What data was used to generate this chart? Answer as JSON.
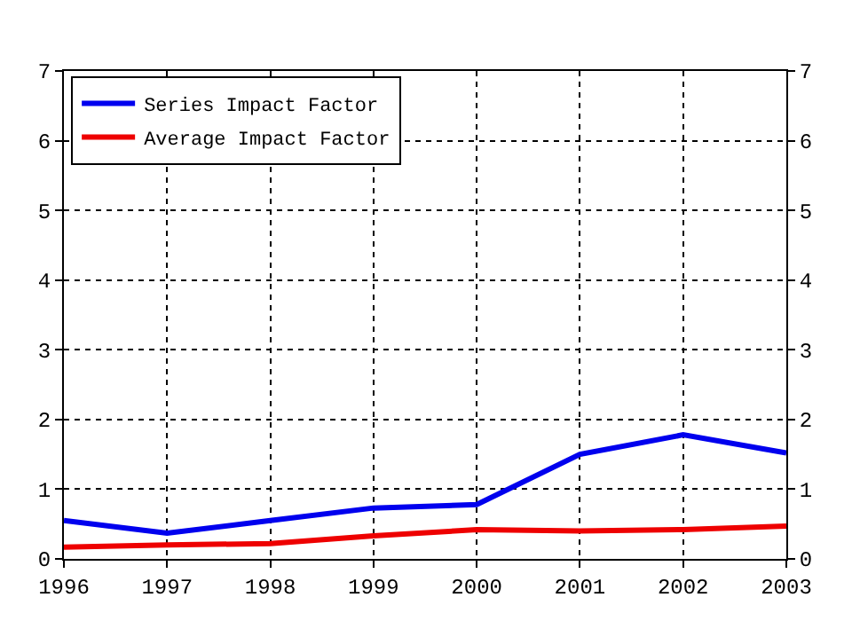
{
  "chart_data": {
    "type": "line",
    "x": [
      1996,
      1997,
      1998,
      1999,
      2000,
      2001,
      2002,
      2003
    ],
    "series": [
      {
        "name": "Series Impact Factor",
        "color": "#0000ee",
        "values": [
          0.55,
          0.37,
          0.55,
          0.73,
          0.78,
          1.5,
          1.78,
          1.52
        ]
      },
      {
        "name": "Average Impact Factor",
        "color": "#ee0000",
        "values": [
          0.17,
          0.2,
          0.22,
          0.33,
          0.42,
          0.4,
          0.42,
          0.47
        ]
      }
    ],
    "xlim": [
      1996,
      2003
    ],
    "xticks": [
      1996,
      1997,
      1998,
      1999,
      2000,
      2001,
      2002,
      2003
    ],
    "ylim": [
      0,
      7
    ],
    "yticks": [
      0,
      1,
      2,
      3,
      4,
      5,
      6,
      7
    ],
    "y2lim": [
      0,
      7
    ],
    "y2ticks": [
      0,
      1,
      2,
      3,
      4,
      5,
      6,
      7
    ],
    "grid": true,
    "legend": "top left",
    "line_style": "solid"
  }
}
